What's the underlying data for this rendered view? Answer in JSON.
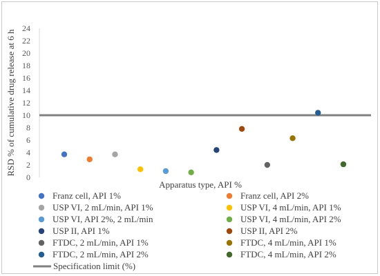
{
  "chart_data": {
    "type": "scatter",
    "title": "",
    "xlabel": "Apparatus type, API %",
    "ylabel": "RSD % of cumulative drug release  at 6 h",
    "ylim": [
      0,
      24
    ],
    "yticks": [
      0,
      2,
      4,
      6,
      8,
      10,
      12,
      14,
      16,
      18,
      20,
      22,
      24
    ],
    "grid": false,
    "legend_position": "bottom",
    "series": [
      {
        "name": "Franz cell, API 1%",
        "x": 1,
        "y": 3.7,
        "color": "#4472c4"
      },
      {
        "name": "Franz cell, API 2%",
        "x": 2,
        "y": 2.9,
        "color": "#ed7d31"
      },
      {
        "name": "USP VI, 2 mL/min, API 1%",
        "x": 3,
        "y": 3.7,
        "color": "#a5a5a5"
      },
      {
        "name": "USP VI,  4 mL/min, API 1%",
        "x": 4,
        "y": 1.3,
        "color": "#ffc000"
      },
      {
        "name": "USP VI, API 2%, 2 mL/min",
        "x": 5,
        "y": 1.0,
        "color": "#5b9bd5"
      },
      {
        "name": "USP VI, 4 mL/min, API 2%",
        "x": 6,
        "y": 0.8,
        "color": "#70ad47"
      },
      {
        "name": "USP II, API 1%",
        "x": 7,
        "y": 4.4,
        "color": "#264478"
      },
      {
        "name": "USP II, API 2%",
        "x": 8,
        "y": 7.8,
        "color": "#9e480e"
      },
      {
        "name": "FTDC, 2 mL/min, API 1%",
        "x": 9,
        "y": 2.0,
        "color": "#636363"
      },
      {
        "name": "FTDC, 4 mL/min,  API 1%",
        "x": 10,
        "y": 6.3,
        "color": "#997300"
      },
      {
        "name": "FTDC, 2 mL/min,  API 2%",
        "x": 11,
        "y": 10.4,
        "color": "#255e91"
      },
      {
        "name": "FTDC, 4 mL/min,  API 2%",
        "x": 12,
        "y": 2.1,
        "color": "#43682b"
      }
    ],
    "reference_line": {
      "name": "Specification limit (%)",
      "y": 10,
      "color": "#808080"
    }
  }
}
